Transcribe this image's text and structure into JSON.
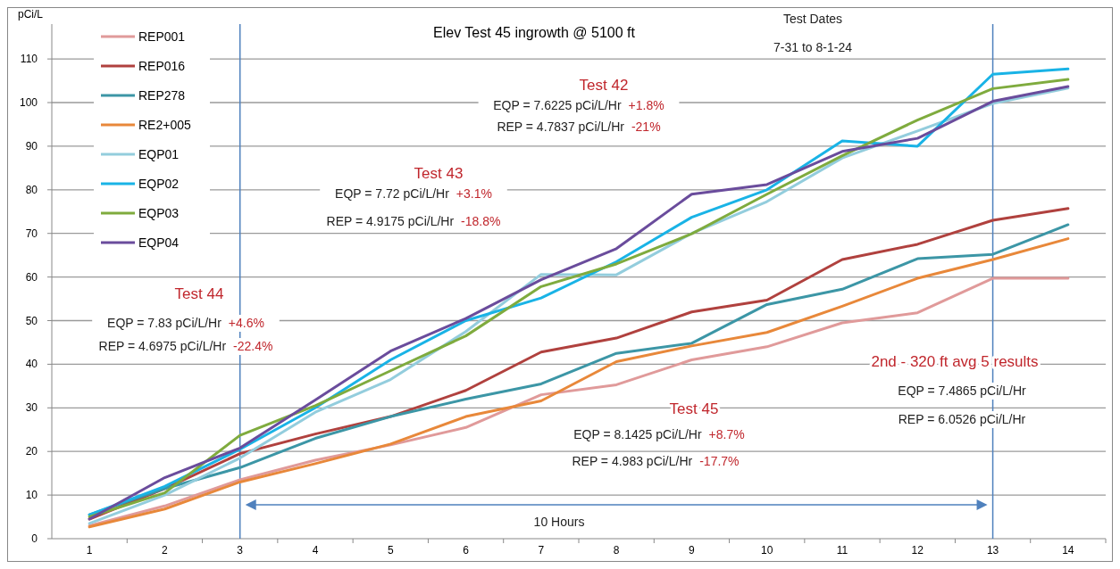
{
  "chart_data": {
    "type": "line",
    "title": "Elev Test 45 ingrowth @ 5100 ft",
    "ylabel": "pCi/L",
    "categories": [
      "1",
      "2",
      "3",
      "4",
      "5",
      "6",
      "7",
      "8",
      "9",
      "10",
      "11",
      "12",
      "13",
      "14"
    ],
    "series": [
      {
        "name": "REP001",
        "color": "#e09a9a",
        "values": [
          3,
          7.5,
          13.5,
          18,
          21.5,
          25.5,
          33,
          35.3,
          41,
          44,
          49.5,
          51.8,
          59.7,
          59.7
        ]
      },
      {
        "name": "REP016",
        "color": "#b0413e",
        "values": [
          4.5,
          11.5,
          19.5,
          24,
          28,
          34,
          42.8,
          46,
          52,
          54.7,
          64,
          67.5,
          73,
          75.7
        ]
      },
      {
        "name": "REP278",
        "color": "#3c96a6",
        "values": [
          5.5,
          11.5,
          16.3,
          23,
          28,
          32,
          35.5,
          42.5,
          44.8,
          53.7,
          57.2,
          64.2,
          65.2,
          72
        ]
      },
      {
        "name": "RE2+005",
        "color": "#e8883a",
        "values": [
          2.7,
          6.8,
          13,
          17.2,
          21.7,
          28,
          31.6,
          40.6,
          44.2,
          47.3,
          53.3,
          59.7,
          64,
          68.8
        ]
      },
      {
        "name": "EQP01",
        "color": "#93cddd",
        "values": [
          3.5,
          10,
          18.5,
          29,
          36.5,
          47.5,
          60.6,
          60.5,
          70,
          77.3,
          87.3,
          93.5,
          99.8,
          103.3
        ]
      },
      {
        "name": "EQP02",
        "color": "#19b3e6",
        "values": [
          5.5,
          12,
          20.5,
          30,
          41,
          50,
          55.2,
          63.5,
          73.7,
          80,
          91.2,
          90,
          106.5,
          107.7
        ]
      },
      {
        "name": "EQP03",
        "color": "#7fab3e",
        "values": [
          5,
          10.5,
          23.7,
          30.5,
          38.5,
          46.5,
          57.8,
          63,
          69.9,
          79,
          87.8,
          96,
          103.2,
          105.3
        ]
      },
      {
        "name": "EQP04",
        "color": "#6a4c9c",
        "values": [
          4.5,
          14,
          20.8,
          31.8,
          43,
          50.5,
          59.4,
          66.5,
          79,
          81.2,
          88.8,
          91.8,
          100.3,
          103.7
        ]
      }
    ],
    "ylim": [
      0,
      118
    ],
    "yticks": [
      0,
      10,
      20,
      30,
      40,
      50,
      60,
      70,
      80,
      90,
      100,
      110
    ],
    "grid": "y",
    "legend": "top left",
    "marker": "none",
    "line_style": "solid",
    "ref_lines": [
      {
        "axis": "x",
        "value": "3",
        "color": "#4f81bd"
      },
      {
        "axis": "x",
        "value": "13",
        "color": "#4f81bd"
      }
    ],
    "annotations": [
      "Test Dates",
      "7-31 to 8-1-24",
      "Test 42",
      "EQP = 7.6225 pCi/L/Hr",
      "+1.8%",
      "REP = 4.7837 pCi/L/Hr",
      "-21%",
      "Test 43",
      "EQP = 7.72 pCi/L/Hr",
      "+3.1%",
      "REP = 4.9175 pCi/L/Hr",
      "-18.8%",
      "Test 44",
      "EQP = 7.83 pCi/L/Hr",
      "+4.6%",
      "REP = 4.6975 pCi/L/Hr",
      "-22.4%",
      "Test 45",
      "EQP = 8.1425 pCi/L/Hr",
      "+8.7%",
      "REP = 4.983 pCi/L/Hr",
      "-17.7%",
      "2nd - 320 ft avg 5 results",
      "EQP = 7.4865 pCi/L/Hr",
      "REP = 6.0526 pCi/L/Hr",
      "10 Hours"
    ]
  }
}
